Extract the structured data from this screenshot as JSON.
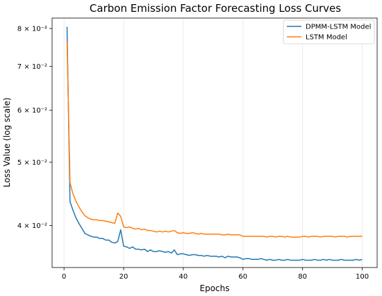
{
  "chart_data": {
    "type": "line",
    "title": "Carbon Emission Factor Forecasting Loss Curves",
    "xlabel": "Epochs",
    "ylabel": "Loss Value (log scale)",
    "yscale": "log",
    "xlim": [
      -4,
      105
    ],
    "ylim": [
      0.0345,
      0.083
    ],
    "grid": "x",
    "legend_position": "top-right",
    "x_ticks": [
      0,
      20,
      40,
      60,
      80,
      100
    ],
    "y_ticks": [
      {
        "value": 0.04,
        "label": "4 × 10⁻²"
      },
      {
        "value": 0.05,
        "label": "5 × 10⁻²"
      },
      {
        "value": 0.06,
        "label": "6 × 10⁻²"
      },
      {
        "value": 0.07,
        "label": "7 × 10⁻²"
      },
      {
        "value": 0.08,
        "label": "8 × 10⁻²"
      }
    ],
    "x": [
      1,
      2,
      3,
      4,
      5,
      6,
      7,
      8,
      9,
      10,
      11,
      12,
      13,
      14,
      15,
      16,
      17,
      18,
      19,
      20,
      21,
      22,
      23,
      24,
      25,
      26,
      27,
      28,
      29,
      30,
      31,
      32,
      33,
      34,
      35,
      36,
      37,
      38,
      39,
      40,
      41,
      42,
      43,
      44,
      45,
      46,
      47,
      48,
      49,
      50,
      51,
      52,
      53,
      54,
      55,
      56,
      57,
      58,
      59,
      60,
      61,
      62,
      63,
      64,
      65,
      66,
      67,
      68,
      69,
      70,
      71,
      72,
      73,
      74,
      75,
      76,
      77,
      78,
      79,
      80,
      81,
      82,
      83,
      84,
      85,
      86,
      87,
      88,
      89,
      90,
      91,
      92,
      93,
      94,
      95,
      96,
      97,
      98,
      99,
      100
    ],
    "series": [
      {
        "name": "DPMM-LSTM Model",
        "color": "#1f77b4",
        "values": [
          0.0805,
          0.0435,
          0.0422,
          0.0411,
          0.0403,
          0.0396,
          0.0389,
          0.0387,
          0.0385,
          0.0384,
          0.0384,
          0.0382,
          0.0382,
          0.038,
          0.038,
          0.0377,
          0.0376,
          0.0378,
          0.0394,
          0.0372,
          0.0371,
          0.0369,
          0.0371,
          0.0368,
          0.0368,
          0.0367,
          0.0368,
          0.0365,
          0.0367,
          0.0365,
          0.0365,
          0.0366,
          0.0365,
          0.0364,
          0.0365,
          0.0363,
          0.0367,
          0.0361,
          0.0362,
          0.0362,
          0.0361,
          0.036,
          0.0361,
          0.0361,
          0.036,
          0.036,
          0.0359,
          0.036,
          0.0359,
          0.0359,
          0.0359,
          0.0358,
          0.0359,
          0.0357,
          0.0359,
          0.0358,
          0.0358,
          0.0358,
          0.0357,
          0.0355,
          0.0356,
          0.0356,
          0.0355,
          0.0355,
          0.0355,
          0.0356,
          0.0355,
          0.0354,
          0.0355,
          0.0354,
          0.0354,
          0.0355,
          0.0354,
          0.0354,
          0.0355,
          0.0354,
          0.0354,
          0.0354,
          0.0354,
          0.0355,
          0.0354,
          0.0354,
          0.0354,
          0.0355,
          0.0354,
          0.0354,
          0.0355,
          0.0354,
          0.0355,
          0.0354,
          0.0354,
          0.0354,
          0.0355,
          0.0354,
          0.0354,
          0.0354,
          0.0354,
          0.0355,
          0.0354,
          0.0355
        ]
      },
      {
        "name": "LSTM Model",
        "color": "#ff7f0e",
        "values": [
          0.0765,
          0.0465,
          0.0447,
          0.0436,
          0.0427,
          0.042,
          0.0414,
          0.0411,
          0.0409,
          0.0408,
          0.0408,
          0.0407,
          0.0407,
          0.0406,
          0.0405,
          0.0404,
          0.0403,
          0.0418,
          0.0413,
          0.0398,
          0.0397,
          0.0398,
          0.0396,
          0.0395,
          0.0396,
          0.0394,
          0.0395,
          0.0393,
          0.0393,
          0.0392,
          0.0391,
          0.0392,
          0.0391,
          0.0392,
          0.0391,
          0.0392,
          0.0393,
          0.039,
          0.0389,
          0.039,
          0.0389,
          0.0389,
          0.039,
          0.0389,
          0.0388,
          0.0389,
          0.0388,
          0.0388,
          0.0388,
          0.0388,
          0.0388,
          0.0388,
          0.0387,
          0.0387,
          0.0388,
          0.0387,
          0.0387,
          0.0387,
          0.0387,
          0.0385,
          0.0385,
          0.0385,
          0.0385,
          0.0385,
          0.0385,
          0.0385,
          0.0385,
          0.0384,
          0.0385,
          0.0385,
          0.0384,
          0.0385,
          0.0385,
          0.0384,
          0.0385,
          0.0384,
          0.0384,
          0.0384,
          0.0384,
          0.0385,
          0.0385,
          0.0384,
          0.0385,
          0.0385,
          0.0385,
          0.0384,
          0.0385,
          0.0385,
          0.0385,
          0.0385,
          0.0384,
          0.0385,
          0.0385,
          0.0385,
          0.0384,
          0.0385,
          0.0385,
          0.0385,
          0.0385,
          0.0385
        ]
      }
    ]
  }
}
